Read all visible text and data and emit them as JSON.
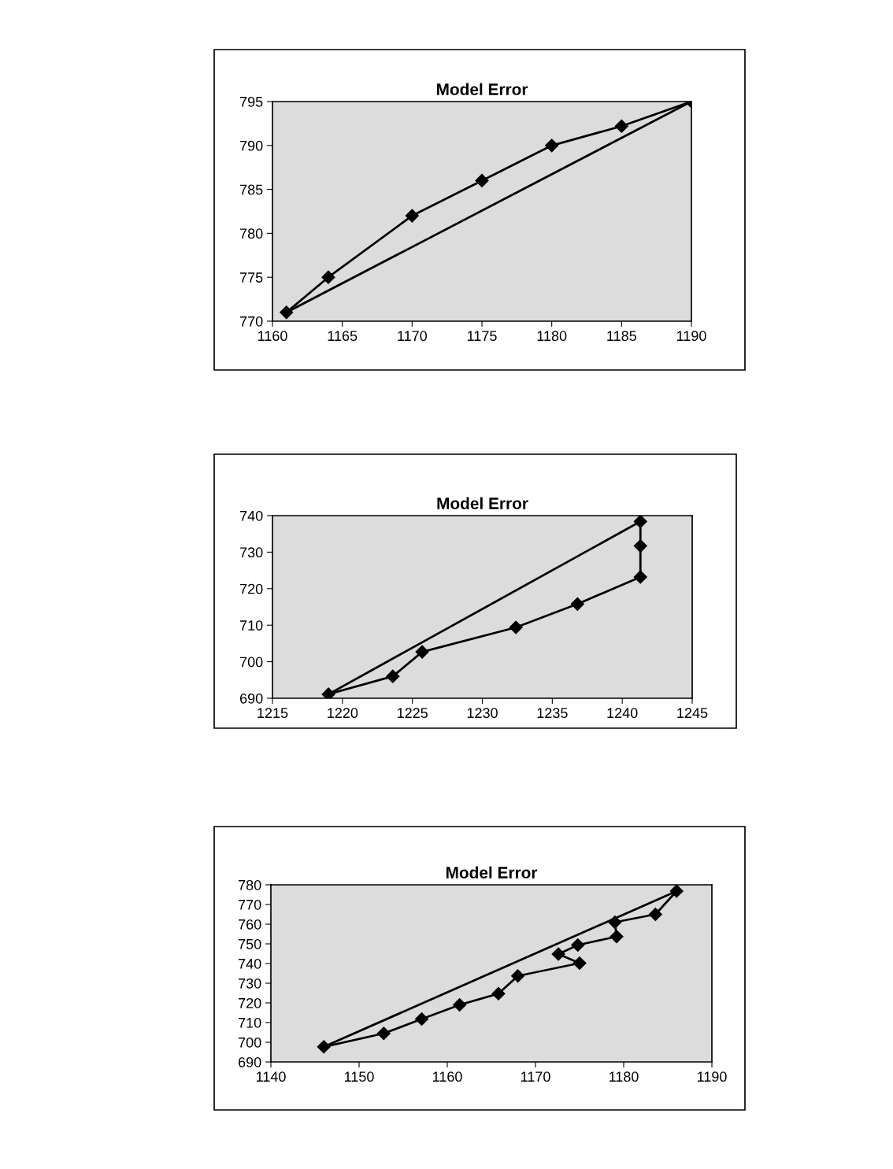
{
  "chart_data": [
    {
      "type": "line",
      "title": "Model Error",
      "xlim": [
        1160,
        1190
      ],
      "xticks": [
        1160,
        1165,
        1170,
        1175,
        1180,
        1185,
        1190
      ],
      "ylim": [
        770,
        795
      ],
      "yticks": [
        770,
        775,
        780,
        785,
        790,
        795
      ],
      "grid": false,
      "legend": false,
      "line_style": "solid",
      "series": [
        {
          "color": "#000000",
          "marker": "diamond",
          "x": [
            1161,
            1164,
            1170,
            1175,
            1180,
            1185,
            1190
          ],
          "values": [
            771,
            775,
            782,
            786,
            790,
            792.2,
            795
          ]
        },
        {
          "color": "#000000",
          "marker": "none",
          "x": [
            1161,
            1190
          ],
          "values": [
            771,
            795
          ]
        }
      ]
    },
    {
      "type": "line",
      "title": "Model Error",
      "xlim": [
        1215,
        1245
      ],
      "xticks": [
        1215,
        1220,
        1225,
        1230,
        1235,
        1240,
        1245
      ],
      "ylim": [
        690,
        740
      ],
      "yticks": [
        690,
        700,
        710,
        720,
        730,
        740
      ],
      "grid": false,
      "legend": false,
      "line_style": "solid",
      "series": [
        {
          "color": "#000000",
          "marker": "diamond",
          "x": [
            1219,
            1223.6,
            1225.7,
            1232.4,
            1236.8,
            1241.3,
            1241.3,
            1241.3
          ],
          "values": [
            691.1,
            696,
            702.7,
            709.4,
            715.8,
            723.2,
            731.7,
            738.4
          ]
        },
        {
          "color": "#000000",
          "marker": "none",
          "x": [
            1219,
            1241.3
          ],
          "values": [
            691.1,
            738.4
          ]
        }
      ]
    },
    {
      "type": "line",
      "title": "Model Error",
      "xlim": [
        1140,
        1190
      ],
      "xticks": [
        1140,
        1150,
        1160,
        1170,
        1180,
        1190
      ],
      "ylim": [
        690,
        780
      ],
      "yticks": [
        690,
        700,
        710,
        720,
        730,
        740,
        750,
        760,
        770,
        780
      ],
      "grid": false,
      "legend": false,
      "line_style": "solid",
      "series": [
        {
          "color": "#000000",
          "marker": "diamond",
          "x": [
            1146,
            1152.8,
            1157.1,
            1161.4,
            1165.8,
            1168,
            1175,
            1172.6,
            1174.8,
            1179.2,
            1179,
            1183.6,
            1186
          ],
          "values": [
            697.7,
            704.5,
            711.8,
            719,
            724.7,
            733.7,
            740.2,
            744.8,
            749.4,
            753.7,
            761,
            765,
            776.8
          ]
        },
        {
          "color": "#000000",
          "marker": "none",
          "x": [
            1146,
            1186
          ],
          "values": [
            697.7,
            776.8
          ]
        }
      ]
    }
  ]
}
